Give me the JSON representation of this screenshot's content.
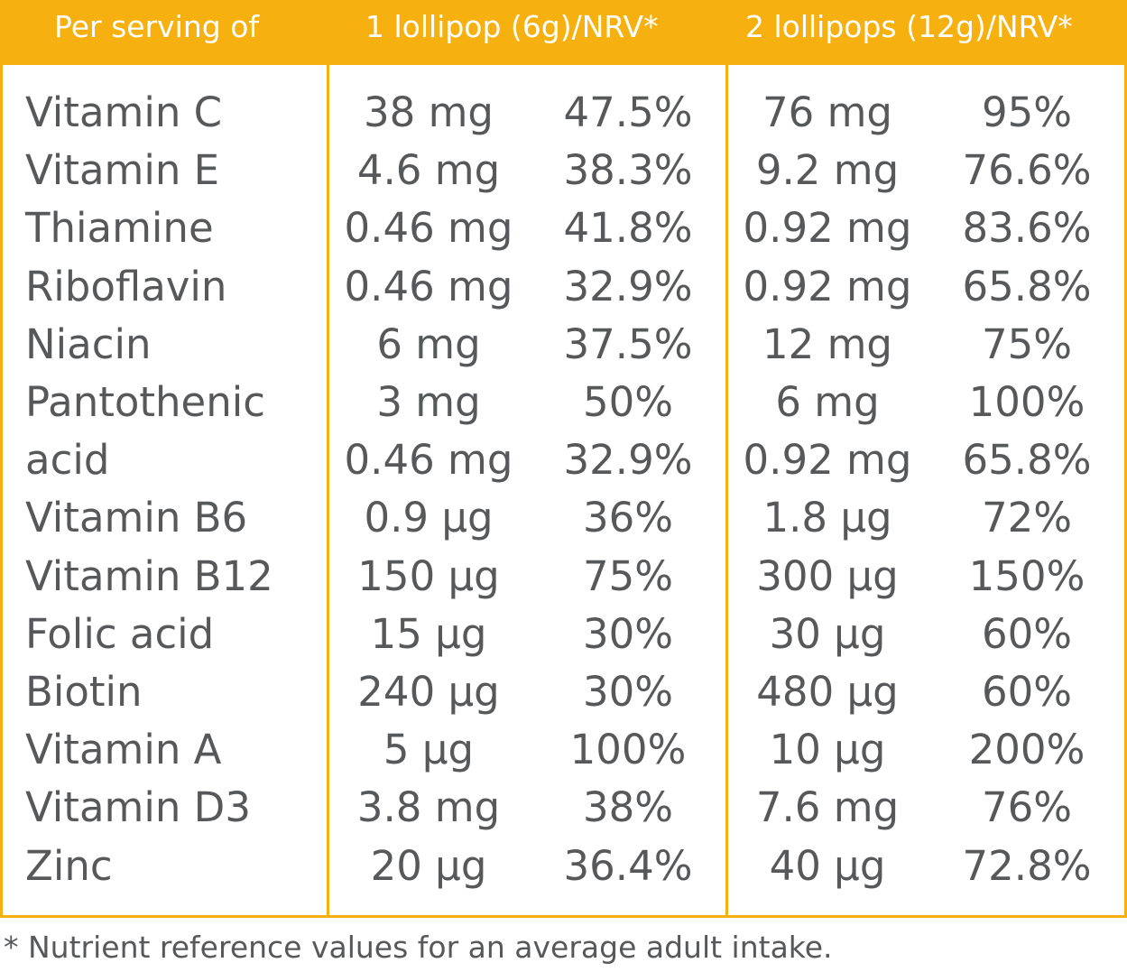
{
  "colors": {
    "accent": "#f6b010",
    "text": "#57585a",
    "header_text": "#ffffff"
  },
  "header": {
    "col1": "Per serving of",
    "col2": "1 lollipop (6g)/NRV*",
    "col3": "2 lollipops (12g)/NRV*"
  },
  "rows": [
    {
      "name": "Vitamin C",
      "amount1": "38 mg",
      "nrv1": "47.5%",
      "amount2": "76 mg",
      "nrv2": "95%"
    },
    {
      "name": "Vitamin E",
      "amount1": "4.6 mg",
      "nrv1": "38.3%",
      "amount2": "9.2 mg",
      "nrv2": "76.6%"
    },
    {
      "name": "Thiamine",
      "amount1": "0.46 mg",
      "nrv1": "41.8%",
      "amount2": "0.92 mg",
      "nrv2": "83.6%"
    },
    {
      "name": "Riboflavin",
      "amount1": "0.46 mg",
      "nrv1": "32.9%",
      "amount2": "0.92 mg",
      "nrv2": "65.8%"
    },
    {
      "name": "Niacin",
      "amount1": "6 mg",
      "nrv1": "37.5%",
      "amount2": "12 mg",
      "nrv2": "75%"
    },
    {
      "name": "Pantothenic",
      "amount1": "3 mg",
      "nrv1": "50%",
      "amount2": "6 mg",
      "nrv2": "100%"
    },
    {
      "name": "acid",
      "amount1": "0.46 mg",
      "nrv1": "32.9%",
      "amount2": "0.92 mg",
      "nrv2": "65.8%"
    },
    {
      "name": "Vitamin B6",
      "amount1": "0.9 µg",
      "nrv1": "36%",
      "amount2": "1.8 µg",
      "nrv2": "72%"
    },
    {
      "name": "Vitamin B12",
      "amount1": "150 µg",
      "nrv1": "75%",
      "amount2": "300 µg",
      "nrv2": "150%"
    },
    {
      "name": "Folic acid",
      "amount1": "15 µg",
      "nrv1": "30%",
      "amount2": "30 µg",
      "nrv2": "60%"
    },
    {
      "name": "Biotin",
      "amount1": "240 µg",
      "nrv1": "30%",
      "amount2": "480 µg",
      "nrv2": "60%"
    },
    {
      "name": "Vitamin A",
      "amount1": "5 µg",
      "nrv1": "100%",
      "amount2": "10 µg",
      "nrv2": "200%"
    },
    {
      "name": "Vitamin D3",
      "amount1": "3.8 mg",
      "nrv1": "38%",
      "amount2": "7.6 mg",
      "nrv2": "76%"
    },
    {
      "name": "Zinc",
      "amount1": "20 µg",
      "nrv1": "36.4%",
      "amount2": "40 µg",
      "nrv2": "72.8%"
    }
  ],
  "footnote": "* Nutrient reference values for an average adult intake."
}
